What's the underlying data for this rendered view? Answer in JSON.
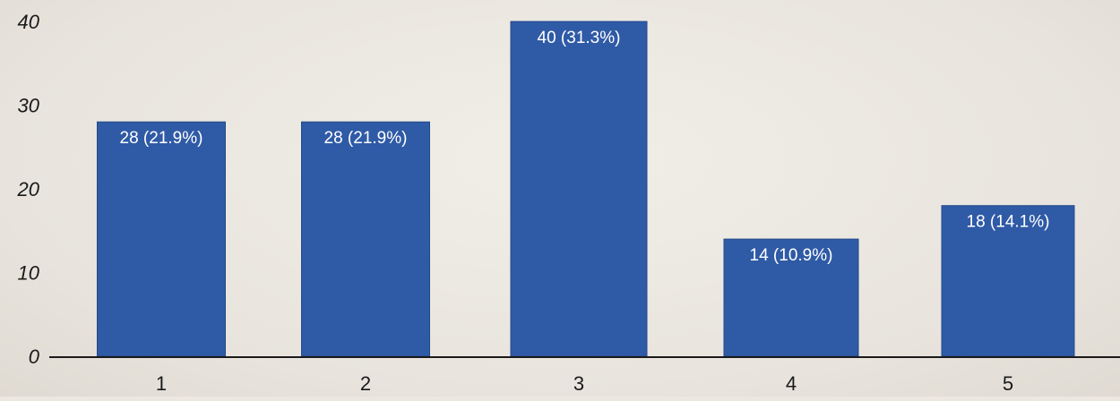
{
  "chart_data": {
    "type": "bar",
    "categories": [
      "1",
      "2",
      "3",
      "4",
      "5"
    ],
    "values": [
      28,
      28,
      40,
      14,
      18
    ],
    "data_labels": [
      "28 (21.9%)",
      "28 (21.9%)",
      "40 (31.3%)",
      "14 (10.9%)",
      "18 (14.1%)"
    ],
    "ylim": [
      0,
      40
    ],
    "yticks": [
      "0",
      "10",
      "20",
      "30",
      "40"
    ],
    "ytick_values": [
      0,
      10,
      20,
      30,
      40
    ],
    "grid": false,
    "title": "",
    "xlabel": "",
    "ylabel": "",
    "colors": {
      "bar": "#2f5aa6",
      "bar_edge": "#24498a",
      "axis": "#1a1a1a"
    }
  }
}
